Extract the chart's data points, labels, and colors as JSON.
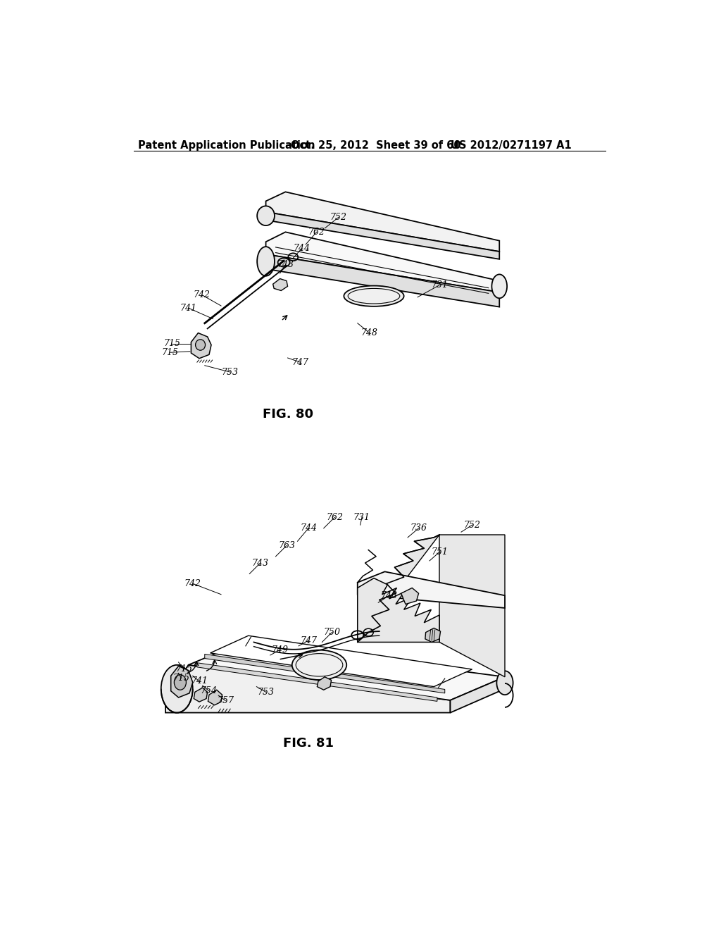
{
  "header_left": "Patent Application Publication",
  "header_mid": "Oct. 25, 2012  Sheet 39 of 60",
  "header_right": "US 2012/0271197 A1",
  "fig80_label": "FIG. 80",
  "fig81_label": "FIG. 81",
  "background_color": "#ffffff",
  "line_color": "#000000",
  "header_fontsize": 10.5,
  "label_fontsize": 9,
  "fig_label_fontsize": 13
}
